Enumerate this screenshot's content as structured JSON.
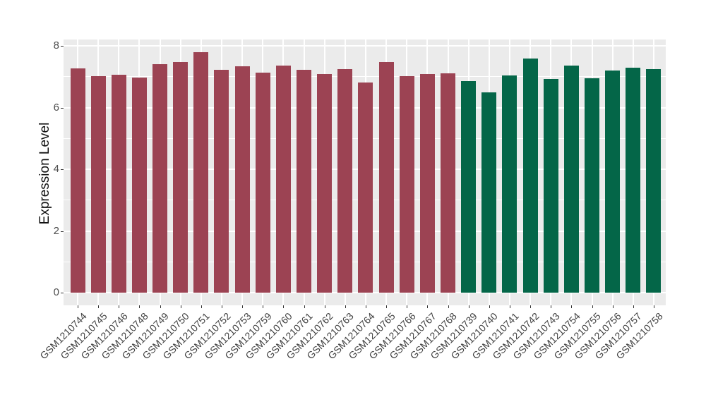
{
  "chart_data": {
    "type": "bar",
    "title": "",
    "xlabel": "",
    "ylabel": "Expression Level",
    "ylim": [
      -0.4,
      8.2
    ],
    "yticks": [
      0,
      2,
      4,
      6,
      8
    ],
    "yminor": [
      1,
      3,
      5,
      7
    ],
    "grid": "on",
    "legend": "none",
    "panel_bg": "#EBEBEB",
    "grid_color": "#FFFFFF",
    "tick_color": "#333333",
    "tick_label_color": "#4D4D4D",
    "categories": [
      "GSM1210744",
      "GSM1210745",
      "GSM1210746",
      "GSM1210748",
      "GSM1210749",
      "GSM1210750",
      "GSM1210751",
      "GSM1210752",
      "GSM1210753",
      "GSM1210759",
      "GSM1210760",
      "GSM1210761",
      "GSM1210762",
      "GSM1210763",
      "GSM1210764",
      "GSM1210765",
      "GSM1210766",
      "GSM1210767",
      "GSM1210768",
      "GSM1210739",
      "GSM1210740",
      "GSM1210741",
      "GSM1210742",
      "GSM1210743",
      "GSM1210754",
      "GSM1210755",
      "GSM1210756",
      "GSM1210757",
      "GSM1210758"
    ],
    "values": [
      7.28,
      7.01,
      7.06,
      6.98,
      7.41,
      7.47,
      7.79,
      7.23,
      7.33,
      7.14,
      7.36,
      7.22,
      7.08,
      7.25,
      6.82,
      7.48,
      7.02,
      7.09,
      7.11,
      6.86,
      6.49,
      7.03,
      7.6,
      6.92,
      7.35,
      6.95,
      7.21,
      7.3,
      7.25
    ],
    "bar_colors": [
      "#9C4353",
      "#9C4353",
      "#9C4353",
      "#9C4353",
      "#9C4353",
      "#9C4353",
      "#9C4353",
      "#9C4353",
      "#9C4353",
      "#9C4353",
      "#9C4353",
      "#9C4353",
      "#9C4353",
      "#9C4353",
      "#9C4353",
      "#9C4353",
      "#9C4353",
      "#9C4353",
      "#9C4353",
      "#046648",
      "#046648",
      "#046648",
      "#046648",
      "#046648",
      "#046648",
      "#046648",
      "#046648",
      "#046648",
      "#046648"
    ],
    "palette": {
      "group_a": "#9C4353",
      "group_b": "#046648"
    }
  }
}
